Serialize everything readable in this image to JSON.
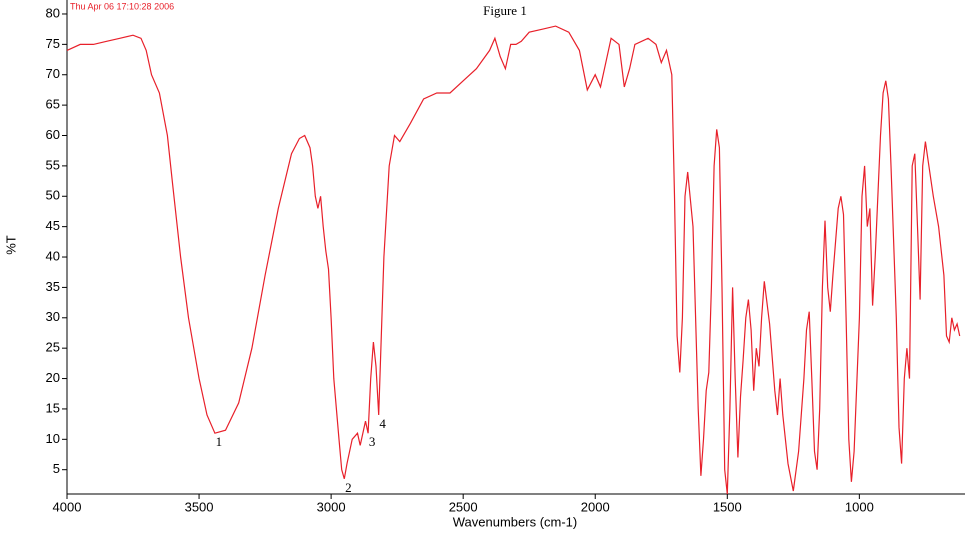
{
  "chart_data": {
    "type": "line",
    "title": "Figure 1",
    "timestamp": "Thu Apr 06 17:10:28 2006",
    "xlabel": "Wavenumbers (cm-1)",
    "ylabel": "%T",
    "color": "#e8202a",
    "xlim": [
      4000,
      600
    ],
    "ylim": [
      1,
      82.3
    ],
    "xticks": [
      4000,
      3500,
      3000,
      2500,
      2000,
      1500,
      1000
    ],
    "yticks": [
      5,
      10,
      15,
      20,
      25,
      30,
      35,
      40,
      45,
      50,
      55,
      60,
      65,
      70,
      75,
      80
    ],
    "x": [
      4000,
      3950,
      3900,
      3850,
      3800,
      3750,
      3720,
      3700,
      3680,
      3650,
      3620,
      3600,
      3570,
      3540,
      3500,
      3470,
      3440,
      3400,
      3350,
      3300,
      3250,
      3200,
      3150,
      3120,
      3100,
      3080,
      3070,
      3060,
      3050,
      3040,
      3030,
      3020,
      3010,
      3000,
      2990,
      2970,
      2960,
      2950,
      2940,
      2920,
      2900,
      2890,
      2870,
      2860,
      2850,
      2840,
      2830,
      2820,
      2800,
      2780,
      2760,
      2740,
      2700,
      2650,
      2600,
      2550,
      2500,
      2450,
      2400,
      2380,
      2360,
      2340,
      2320,
      2300,
      2280,
      2250,
      2200,
      2150,
      2100,
      2060,
      2030,
      2000,
      1980,
      1960,
      1940,
      1910,
      1890,
      1870,
      1850,
      1800,
      1770,
      1750,
      1730,
      1710,
      1700,
      1690,
      1680,
      1670,
      1660,
      1650,
      1630,
      1610,
      1600,
      1590,
      1580,
      1570,
      1560,
      1550,
      1540,
      1530,
      1520,
      1510,
      1500,
      1490,
      1480,
      1470,
      1460,
      1450,
      1440,
      1430,
      1420,
      1410,
      1400,
      1390,
      1380,
      1370,
      1360,
      1340,
      1320,
      1310,
      1300,
      1290,
      1270,
      1250,
      1230,
      1210,
      1200,
      1190,
      1180,
      1170,
      1160,
      1150,
      1140,
      1130,
      1120,
      1110,
      1100,
      1080,
      1070,
      1060,
      1050,
      1040,
      1030,
      1020,
      1000,
      990,
      980,
      970,
      960,
      950,
      940,
      920,
      910,
      900,
      890,
      880,
      860,
      850,
      840,
      830,
      820,
      810,
      800,
      790,
      780,
      770,
      760,
      750,
      740,
      720,
      700,
      680,
      670,
      660,
      650,
      640,
      630,
      620
    ],
    "values": [
      74,
      75,
      75,
      75.5,
      76,
      76.5,
      76,
      74,
      70,
      67,
      60,
      52,
      40,
      30,
      20,
      14,
      11,
      11.5,
      16,
      25,
      37,
      48,
      57,
      59.5,
      60,
      58,
      55,
      50,
      48,
      50,
      45,
      41,
      38,
      30,
      20,
      10,
      5,
      3.5,
      6,
      10,
      11,
      9,
      13,
      11,
      20,
      26,
      22,
      14,
      40,
      55,
      60,
      59,
      62,
      66,
      67,
      67,
      69,
      71,
      74,
      76,
      73,
      71,
      75,
      75,
      75.5,
      77,
      77.5,
      78,
      77,
      74,
      67.5,
      70,
      68,
      72,
      76,
      75,
      68,
      71,
      75,
      76,
      75,
      72,
      74,
      70,
      50,
      27,
      21,
      30,
      50,
      54,
      45,
      15,
      4,
      10,
      18,
      21,
      35,
      55,
      61,
      58,
      35,
      5,
      1,
      15,
      35,
      20,
      7,
      17,
      23,
      30,
      33,
      28,
      18,
      25,
      22,
      30,
      36,
      29,
      18,
      14,
      20,
      14,
      6,
      1.5,
      8,
      20,
      28,
      31,
      20,
      8,
      5,
      15,
      35,
      46,
      35,
      31,
      37,
      48,
      50,
      47,
      30,
      10,
      3,
      8,
      30,
      50,
      55,
      45,
      48,
      32,
      40,
      60,
      67,
      69,
      66,
      55,
      30,
      12,
      6,
      20,
      25,
      20,
      55,
      57,
      45,
      33,
      55,
      59,
      56,
      50,
      45,
      37,
      27,
      26,
      30,
      28,
      29,
      27
    ],
    "annotations": [
      {
        "label": "1",
        "x": 3440,
        "y": 11
      },
      {
        "label": "2",
        "x": 2950,
        "y": 3.5
      },
      {
        "label": "3",
        "x": 2860,
        "y": 11
      },
      {
        "label": "4",
        "x": 2820,
        "y": 14
      }
    ]
  }
}
